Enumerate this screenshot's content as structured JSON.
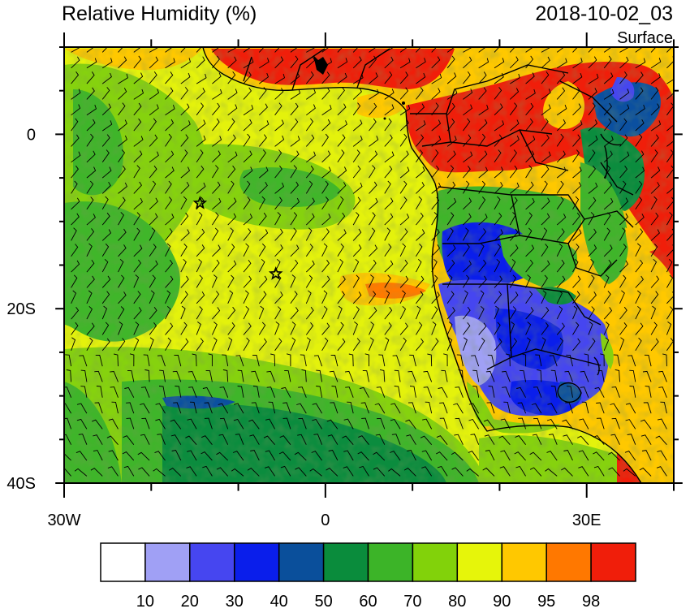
{
  "title": "Relative Humidity (%)",
  "datetime": "2018-10-02_03",
  "level": "Surface",
  "map": {
    "lon_range": [
      -30,
      40
    ],
    "lat_range": [
      -40,
      10
    ],
    "x_tick_labels": [
      {
        "lon": -30,
        "label": "30W"
      },
      {
        "lon": 0,
        "label": "0"
      },
      {
        "lon": 30,
        "label": "30E"
      }
    ],
    "y_tick_labels": [
      {
        "lat": 0,
        "label": "0"
      },
      {
        "lat": -20,
        "label": "20S"
      },
      {
        "lat": -40,
        "label": "40S"
      }
    ],
    "markers": [
      {
        "lon": -14.4,
        "lat": -7.9,
        "symbol": "star"
      },
      {
        "lon": -5.7,
        "lat": -16.0,
        "symbol": "star"
      }
    ]
  },
  "colorbar": {
    "colors": [
      "#ffffff",
      "#a0a0f5",
      "#4646f0",
      "#0a1eeb",
      "#0a4f9b",
      "#0a8c3c",
      "#3cb428",
      "#82d20a",
      "#e6f50a",
      "#ffc800",
      "#ff7800",
      "#f01e0a"
    ],
    "labels": [
      "10",
      "20",
      "30",
      "40",
      "50",
      "60",
      "70",
      "80",
      "90",
      "95",
      "98"
    ]
  }
}
